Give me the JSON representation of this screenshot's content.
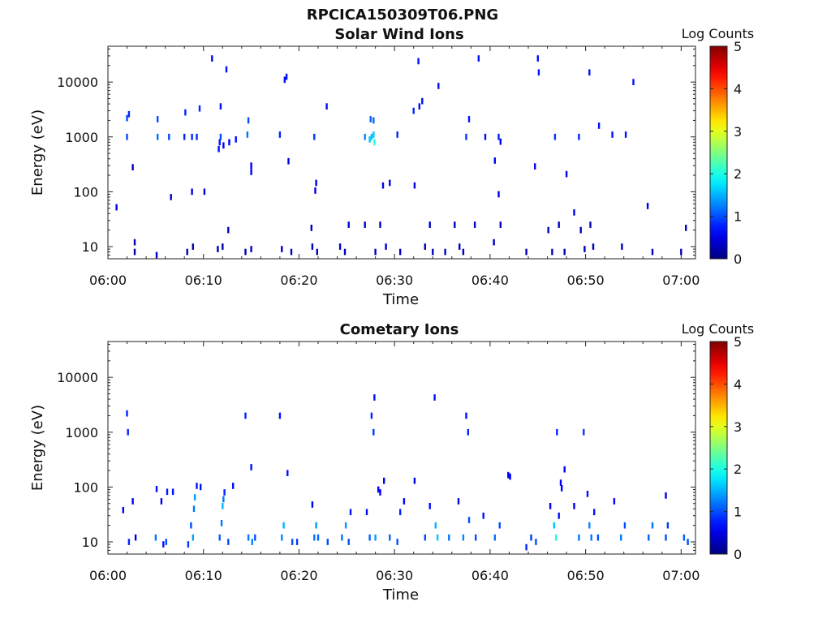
{
  "figure": {
    "title": "RPCICA150309T06.PNG"
  },
  "chart_data": [
    {
      "type": "heatmap",
      "title": "Solar Wind Ions",
      "xlabel": "Time",
      "ylabel": "Energy (eV)",
      "x_ticks": [
        "06:00",
        "06:10",
        "06:20",
        "06:30",
        "06:40",
        "06:50",
        "07:00"
      ],
      "xlim_minutes": [
        0,
        61.5
      ],
      "y_scale": "log",
      "ylim": [
        6,
        45000
      ],
      "y_ticks": [
        10,
        100,
        1000,
        10000
      ],
      "y_tick_labels": [
        "10",
        "100",
        "1000",
        "10000"
      ],
      "colorbar": {
        "label": "Log Counts",
        "min": 0,
        "max": 5,
        "ticks": [
          "0",
          "1",
          "2",
          "3",
          "4",
          "5"
        ],
        "colormap": "jet"
      },
      "grid": false,
      "cells": [
        [
          0.9,
          52,
          0.5
        ],
        [
          2.0,
          1000,
          1.0
        ],
        [
          2.0,
          2200,
          1.0
        ],
        [
          2.2,
          2600,
          0.8
        ],
        [
          2.6,
          280,
          0.3
        ],
        [
          2.8,
          8,
          0.2
        ],
        [
          2.8,
          12,
          0.2
        ],
        [
          5.1,
          7,
          0.3
        ],
        [
          5.2,
          1000,
          1.2
        ],
        [
          5.2,
          2100,
          1.0
        ],
        [
          6.4,
          1000,
          1.0
        ],
        [
          6.6,
          80,
          0.4
        ],
        [
          8.0,
          1000,
          0.8
        ],
        [
          8.1,
          2800,
          0.8
        ],
        [
          8.3,
          8,
          0.2
        ],
        [
          8.8,
          100,
          0.5
        ],
        [
          8.8,
          1000,
          0.8
        ],
        [
          8.9,
          10,
          0.2
        ],
        [
          9.3,
          1000,
          0.8
        ],
        [
          9.6,
          3300,
          0.8
        ],
        [
          10.1,
          100,
          0.5
        ],
        [
          10.9,
          27000,
          0.7
        ],
        [
          11.6,
          600,
          0.7
        ],
        [
          11.7,
          800,
          0.7
        ],
        [
          11.8,
          1000,
          1.0
        ],
        [
          11.8,
          3600,
          0.7
        ],
        [
          11.5,
          9,
          0.2
        ],
        [
          12.0,
          10,
          0.2
        ],
        [
          12.1,
          700,
          0.6
        ],
        [
          12.4,
          17000,
          0.7
        ],
        [
          12.7,
          800,
          0.6
        ],
        [
          12.6,
          20,
          0.3
        ],
        [
          13.4,
          900,
          0.7
        ],
        [
          14.4,
          8,
          0.2
        ],
        [
          14.6,
          1100,
          1.2
        ],
        [
          14.7,
          2000,
          1.0
        ],
        [
          15.0,
          300,
          0.6
        ],
        [
          15.0,
          230,
          0.6
        ],
        [
          15.0,
          9,
          0.3
        ],
        [
          18.0,
          1100,
          0.8
        ],
        [
          18.2,
          9,
          0.3
        ],
        [
          18.5,
          11000,
          0.7
        ],
        [
          18.7,
          12500,
          0.7
        ],
        [
          18.9,
          360,
          0.5
        ],
        [
          19.2,
          8,
          0.3
        ],
        [
          21.3,
          22,
          0.3
        ],
        [
          21.4,
          10,
          0.3
        ],
        [
          21.6,
          1000,
          0.9
        ],
        [
          21.7,
          105,
          0.5
        ],
        [
          21.8,
          145,
          0.5
        ],
        [
          21.9,
          8,
          0.3
        ],
        [
          22.9,
          3600,
          0.7
        ],
        [
          24.3,
          10,
          0.3
        ],
        [
          24.8,
          8,
          0.3
        ],
        [
          25.2,
          25,
          0.5
        ],
        [
          26.9,
          1000,
          1.3
        ],
        [
          26.9,
          25,
          0.4
        ],
        [
          27.4,
          900,
          1.6
        ],
        [
          27.5,
          2100,
          1.1
        ],
        [
          27.6,
          1000,
          1.6
        ],
        [
          27.8,
          2000,
          1.1
        ],
        [
          27.8,
          1100,
          1.6
        ],
        [
          27.9,
          800,
          2.0
        ],
        [
          28.0,
          8,
          0.3
        ],
        [
          28.5,
          25,
          0.4
        ],
        [
          28.8,
          130,
          0.5
        ],
        [
          29.1,
          10,
          0.4
        ],
        [
          29.5,
          145,
          0.5
        ],
        [
          30.3,
          1100,
          0.8
        ],
        [
          30.6,
          8,
          0.3
        ],
        [
          32.0,
          3000,
          0.8
        ],
        [
          32.1,
          130,
          0.5
        ],
        [
          32.5,
          24000,
          0.7
        ],
        [
          32.6,
          3600,
          0.7
        ],
        [
          32.9,
          4500,
          0.7
        ],
        [
          33.2,
          10,
          0.3
        ],
        [
          33.7,
          25,
          0.3
        ],
        [
          34.0,
          8,
          0.3
        ],
        [
          34.6,
          8500,
          0.7
        ],
        [
          35.3,
          8,
          0.3
        ],
        [
          36.3,
          25,
          0.3
        ],
        [
          36.8,
          10,
          0.3
        ],
        [
          37.2,
          8,
          0.3
        ],
        [
          37.5,
          1000,
          0.9
        ],
        [
          37.8,
          2100,
          0.7
        ],
        [
          38.4,
          25,
          0.3
        ],
        [
          38.8,
          27000,
          0.7
        ],
        [
          39.5,
          1000,
          0.7
        ],
        [
          40.4,
          12,
          0.3
        ],
        [
          40.5,
          370,
          0.6
        ],
        [
          40.9,
          90,
          0.6
        ],
        [
          40.9,
          1000,
          0.8
        ],
        [
          41.1,
          820,
          0.6
        ],
        [
          41.1,
          25,
          0.3
        ],
        [
          43.8,
          8,
          0.3
        ],
        [
          44.7,
          290,
          0.6
        ],
        [
          45.0,
          27000,
          0.7
        ],
        [
          45.1,
          15000,
          0.7
        ],
        [
          46.1,
          20,
          0.3
        ],
        [
          46.5,
          8,
          0.3
        ],
        [
          46.8,
          1000,
          0.9
        ],
        [
          47.2,
          25,
          0.4
        ],
        [
          47.8,
          8,
          0.3
        ],
        [
          48.0,
          210,
          0.6
        ],
        [
          48.8,
          42,
          0.6
        ],
        [
          49.3,
          1000,
          0.8
        ],
        [
          49.5,
          20,
          0.3
        ],
        [
          49.9,
          9,
          0.3
        ],
        [
          50.4,
          15000,
          0.7
        ],
        [
          50.5,
          25,
          0.3
        ],
        [
          50.8,
          10,
          0.3
        ],
        [
          51.4,
          1600,
          0.7
        ],
        [
          52.8,
          1100,
          0.7
        ],
        [
          53.8,
          10,
          0.3
        ],
        [
          54.2,
          1100,
          0.7
        ],
        [
          55.0,
          10000,
          0.7
        ],
        [
          56.5,
          55,
          0.5
        ],
        [
          57.0,
          8,
          0.3
        ],
        [
          60.0,
          8,
          0.3
        ],
        [
          60.5,
          22,
          0.3
        ]
      ]
    },
    {
      "type": "heatmap",
      "title": "Cometary Ions",
      "xlabel": "Time",
      "ylabel": "Energy (eV)",
      "x_ticks": [
        "06:00",
        "06:10",
        "06:20",
        "06:30",
        "06:40",
        "06:50",
        "07:00"
      ],
      "xlim_minutes": [
        0,
        61.5
      ],
      "y_scale": "log",
      "ylim": [
        6,
        45000
      ],
      "y_ticks": [
        10,
        100,
        1000,
        10000
      ],
      "y_tick_labels": [
        "10",
        "100",
        "1000",
        "10000"
      ],
      "colorbar": {
        "label": "Log Counts",
        "min": 0,
        "max": 5,
        "ticks": [
          "0",
          "1",
          "2",
          "3",
          "4",
          "5"
        ],
        "colormap": "jet"
      },
      "grid": false,
      "cells": [
        [
          1.6,
          38,
          0.6
        ],
        [
          2.0,
          2200,
          0.8
        ],
        [
          2.1,
          1000,
          0.8
        ],
        [
          2.2,
          10,
          0.8
        ],
        [
          2.6,
          55,
          0.6
        ],
        [
          2.9,
          12,
          0.5
        ],
        [
          5.1,
          92,
          0.7
        ],
        [
          5.0,
          12,
          1.2
        ],
        [
          5.6,
          55,
          0.6
        ],
        [
          5.8,
          9,
          0.7
        ],
        [
          6.1,
          10,
          1.0
        ],
        [
          6.2,
          82,
          0.7
        ],
        [
          6.8,
          82,
          0.7
        ],
        [
          8.4,
          9,
          0.9
        ],
        [
          8.7,
          20,
          1.0
        ],
        [
          8.9,
          12,
          1.4
        ],
        [
          9.0,
          40,
          1.2
        ],
        [
          9.1,
          65,
          1.4
        ],
        [
          9.3,
          105,
          0.7
        ],
        [
          9.7,
          100,
          0.7
        ],
        [
          11.7,
          12,
          1.1
        ],
        [
          11.9,
          22,
          1.2
        ],
        [
          12.0,
          45,
          1.5
        ],
        [
          12.1,
          60,
          1.2
        ],
        [
          12.2,
          80,
          0.8
        ],
        [
          12.6,
          10,
          1.0
        ],
        [
          13.1,
          105,
          0.7
        ],
        [
          14.4,
          2000,
          0.8
        ],
        [
          14.7,
          12,
          1.2
        ],
        [
          15.0,
          230,
          0.7
        ],
        [
          15.1,
          10,
          1.3
        ],
        [
          15.4,
          12,
          1.0
        ],
        [
          18.0,
          2000,
          0.7
        ],
        [
          18.2,
          12,
          1.3
        ],
        [
          18.4,
          20,
          1.5
        ],
        [
          18.8,
          180,
          0.7
        ],
        [
          19.3,
          10,
          1.0
        ],
        [
          19.8,
          10,
          0.9
        ],
        [
          21.4,
          48,
          0.6
        ],
        [
          21.6,
          12,
          1.2
        ],
        [
          21.8,
          20,
          1.4
        ],
        [
          22.0,
          12,
          1.1
        ],
        [
          23.0,
          10,
          1.0
        ],
        [
          24.5,
          12,
          1.2
        ],
        [
          24.9,
          20,
          1.4
        ],
        [
          25.2,
          10,
          1.0
        ],
        [
          25.4,
          35,
          0.7
        ],
        [
          27.1,
          35,
          0.7
        ],
        [
          27.4,
          12,
          1.1
        ],
        [
          27.6,
          2000,
          0.8
        ],
        [
          27.8,
          1000,
          0.9
        ],
        [
          28.0,
          12,
          1.4
        ],
        [
          27.9,
          4300,
          0.7
        ],
        [
          28.3,
          90,
          0.6
        ],
        [
          28.5,
          80,
          0.6
        ],
        [
          28.9,
          130,
          0.5
        ],
        [
          29.5,
          12,
          1.1
        ],
        [
          30.3,
          10,
          1.0
        ],
        [
          30.6,
          35,
          0.8
        ],
        [
          31.0,
          55,
          0.6
        ],
        [
          32.1,
          130,
          0.5
        ],
        [
          33.2,
          12,
          1.0
        ],
        [
          33.7,
          45,
          0.7
        ],
        [
          34.2,
          4300,
          0.7
        ],
        [
          34.3,
          20,
          1.5
        ],
        [
          34.5,
          12,
          1.6
        ],
        [
          35.7,
          12,
          1.2
        ],
        [
          36.7,
          55,
          0.6
        ],
        [
          37.2,
          12,
          1.3
        ],
        [
          37.5,
          2000,
          0.7
        ],
        [
          37.7,
          1000,
          0.8
        ],
        [
          37.8,
          25,
          1.0
        ],
        [
          38.5,
          12,
          1.0
        ],
        [
          39.3,
          30,
          0.7
        ],
        [
          40.5,
          12,
          1.2
        ],
        [
          41.0,
          20,
          1.0
        ],
        [
          41.9,
          165,
          0.6
        ],
        [
          42.1,
          155,
          0.6
        ],
        [
          43.8,
          8,
          0.8
        ],
        [
          44.3,
          12,
          0.9
        ],
        [
          44.8,
          10,
          1.0
        ],
        [
          46.3,
          45,
          0.6
        ],
        [
          46.7,
          20,
          1.6
        ],
        [
          46.9,
          12,
          2.0
        ],
        [
          47.0,
          1000,
          0.8
        ],
        [
          47.2,
          30,
          0.7
        ],
        [
          47.4,
          120,
          0.6
        ],
        [
          47.5,
          95,
          0.6
        ],
        [
          47.8,
          210,
          0.6
        ],
        [
          48.8,
          45,
          0.6
        ],
        [
          49.3,
          12,
          1.2
        ],
        [
          49.8,
          1000,
          0.9
        ],
        [
          50.2,
          75,
          0.7
        ],
        [
          50.4,
          20,
          1.3
        ],
        [
          50.6,
          12,
          1.2
        ],
        [
          50.9,
          35,
          0.7
        ],
        [
          51.3,
          12,
          1.0
        ],
        [
          53.0,
          55,
          0.6
        ],
        [
          53.7,
          12,
          1.2
        ],
        [
          54.1,
          20,
          1.0
        ],
        [
          56.6,
          12,
          1.1
        ],
        [
          57.0,
          20,
          1.2
        ],
        [
          58.4,
          12,
          1.0
        ],
        [
          58.6,
          20,
          0.9
        ],
        [
          60.3,
          12,
          1.1
        ],
        [
          60.7,
          10,
          1.0
        ],
        [
          58.4,
          70,
          0.5
        ]
      ]
    }
  ]
}
